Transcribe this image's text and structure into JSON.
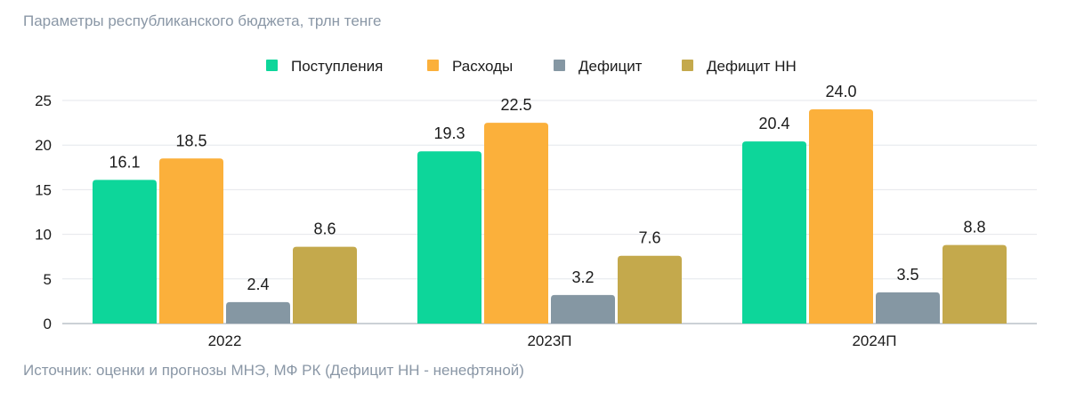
{
  "chart_title": "Параметры республиканского бюджета, трлн тенге",
  "source_note": "Источник: оценки и прогнозы МНЭ, МФ РК (Дефицит НН - ненефтяной)",
  "chart_data": {
    "type": "bar",
    "title": "Параметры республиканского бюджета, трлн тенге",
    "xlabel": "",
    "ylabel": "",
    "categories": [
      "2022",
      "2023П",
      "2024П"
    ],
    "ylim": [
      0,
      25
    ],
    "yticks": [
      0,
      5,
      10,
      15,
      20,
      25
    ],
    "grid": true,
    "legend_position": "top-center",
    "series": [
      {
        "name": "Поступления",
        "color": "#0dd69a",
        "values": [
          16.1,
          19.3,
          20.4
        ],
        "labels": [
          "16.1",
          "19.3",
          "20.4"
        ]
      },
      {
        "name": "Расходы",
        "color": "#fbb03b",
        "values": [
          18.5,
          22.5,
          24.0
        ],
        "labels": [
          "18.5",
          "22.5",
          "24.0"
        ]
      },
      {
        "name": "Дефицит",
        "color": "#8597a3",
        "values": [
          2.4,
          3.2,
          3.5
        ],
        "labels": [
          "2.4",
          "3.2",
          "3.5"
        ]
      },
      {
        "name": "Дефицит НН",
        "color": "#c4a94c",
        "values": [
          8.6,
          7.6,
          8.8
        ],
        "labels": [
          "8.6",
          "7.6",
          "8.8"
        ]
      }
    ]
  }
}
